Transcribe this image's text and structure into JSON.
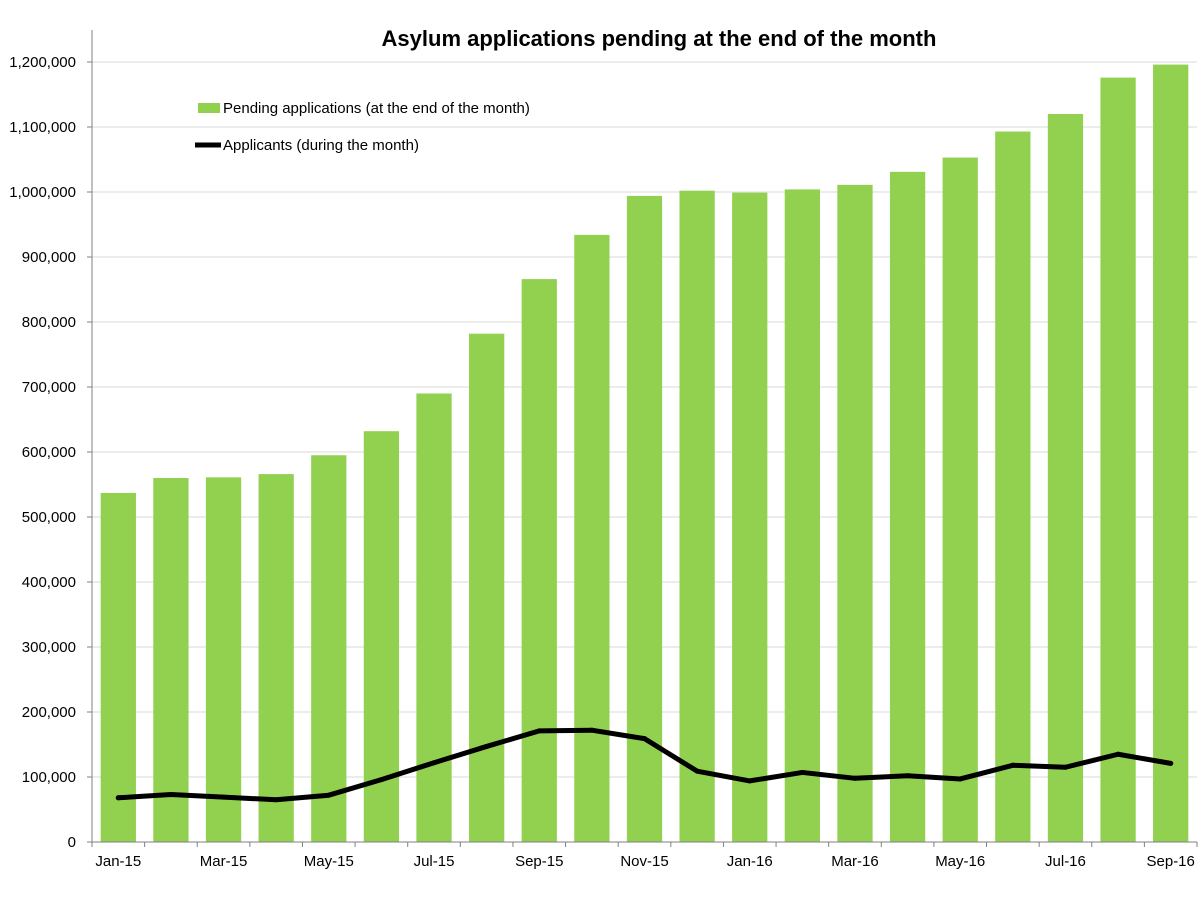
{
  "chart_data": {
    "type": "bar",
    "title": "Asylum applications pending at the end of the month",
    "xlabel": "",
    "ylabel": "",
    "ylim": [
      0,
      1200000
    ],
    "y_ticks": [
      0,
      100000,
      200000,
      300000,
      400000,
      500000,
      600000,
      700000,
      800000,
      900000,
      1000000,
      1100000,
      1200000
    ],
    "y_tick_labels": [
      "0",
      "100,000",
      "200,000",
      "300,000",
      "400,000",
      "500,000",
      "600,000",
      "700,000",
      "800,000",
      "900,000",
      "1,000,000",
      "1,100,000",
      "1,200,000"
    ],
    "categories": [
      "Jan-15",
      "Feb-15",
      "Mar-15",
      "Apr-15",
      "May-15",
      "Jun-15",
      "Jul-15",
      "Aug-15",
      "Sep-15",
      "Oct-15",
      "Nov-15",
      "Dec-15",
      "Jan-16",
      "Feb-16",
      "Mar-16",
      "Apr-16",
      "May-16",
      "Jun-16",
      "Jul-16",
      "Aug-16",
      "Sep-16"
    ],
    "x_tick_labels": [
      "Jan-15",
      "",
      "Mar-15",
      "",
      "May-15",
      "",
      "Jul-15",
      "",
      "Sep-15",
      "",
      "Nov-15",
      "",
      "Jan-16",
      "",
      "Mar-16",
      "",
      "May-16",
      "",
      "Jul-16",
      "",
      "Sep-16"
    ],
    "grid": true,
    "legend_position": "top-left",
    "series": [
      {
        "name": "Pending applications (at the end of the month)",
        "type": "bar",
        "color": "#92D050",
        "values": [
          537000,
          560000,
          561000,
          566000,
          595000,
          632000,
          690000,
          782000,
          866000,
          934000,
          994000,
          1002000,
          999000,
          1004000,
          1011000,
          1031000,
          1053000,
          1093000,
          1120000,
          1176000,
          1196000
        ]
      },
      {
        "name": "Applicants (during the month)",
        "type": "line",
        "color": "#000000",
        "values": [
          68000,
          73000,
          69000,
          65000,
          72000,
          96000,
          122000,
          147000,
          171000,
          172000,
          159000,
          109000,
          94000,
          107000,
          98000,
          102000,
          97000,
          118000,
          115000,
          135000,
          121000
        ]
      }
    ]
  }
}
